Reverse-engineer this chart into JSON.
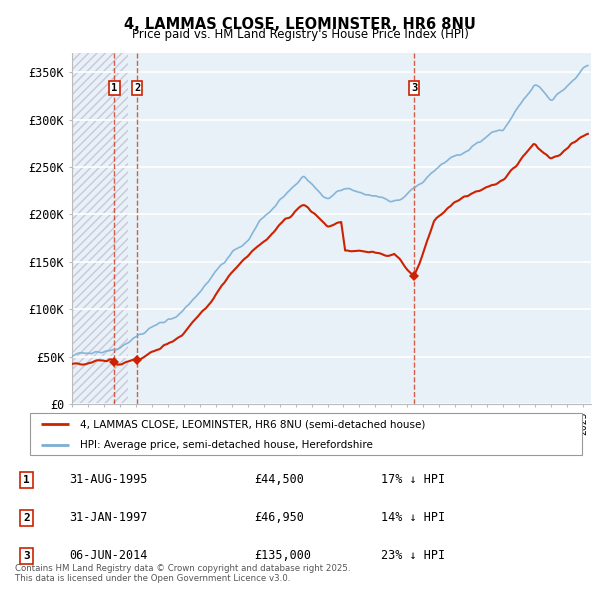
{
  "title_line1": "4, LAMMAS CLOSE, LEOMINSTER, HR6 8NU",
  "title_line2": "Price paid vs. HM Land Registry's House Price Index (HPI)",
  "yticks": [
    0,
    50000,
    100000,
    150000,
    200000,
    250000,
    300000,
    350000
  ],
  "ytick_labels": [
    "£0",
    "£50K",
    "£100K",
    "£150K",
    "£200K",
    "£250K",
    "£300K",
    "£350K"
  ],
  "xlim_start": 1993.0,
  "xlim_end": 2025.5,
  "ylim_min": 0,
  "ylim_max": 370000,
  "hpi_color": "#7bafd4",
  "price_color": "#cc2200",
  "vline_color": "#cc2200",
  "background_color": "#ffffff",
  "plot_bg_color": "#e8f0f8",
  "grid_color": "#ffffff",
  "hatch_color": "#c8c8d8",
  "transactions": [
    {
      "label": "1",
      "date_num": 1995.66,
      "price": 44500,
      "year_str": "31-AUG-1995",
      "price_str": "£44,500",
      "pct_str": "17% ↓ HPI"
    },
    {
      "label": "2",
      "date_num": 1997.08,
      "price": 46950,
      "year_str": "31-JAN-1997",
      "price_str": "£46,950",
      "pct_str": "14% ↓ HPI"
    },
    {
      "label": "3",
      "date_num": 2014.42,
      "price": 135000,
      "year_str": "06-JUN-2014",
      "price_str": "£135,000",
      "pct_str": "23% ↓ HPI"
    }
  ],
  "legend_label_price": "4, LAMMAS CLOSE, LEOMINSTER, HR6 8NU (semi-detached house)",
  "legend_label_hpi": "HPI: Average price, semi-detached house, Herefordshire",
  "footer_text": "Contains HM Land Registry data © Crown copyright and database right 2025.\nThis data is licensed under the Open Government Licence v3.0."
}
